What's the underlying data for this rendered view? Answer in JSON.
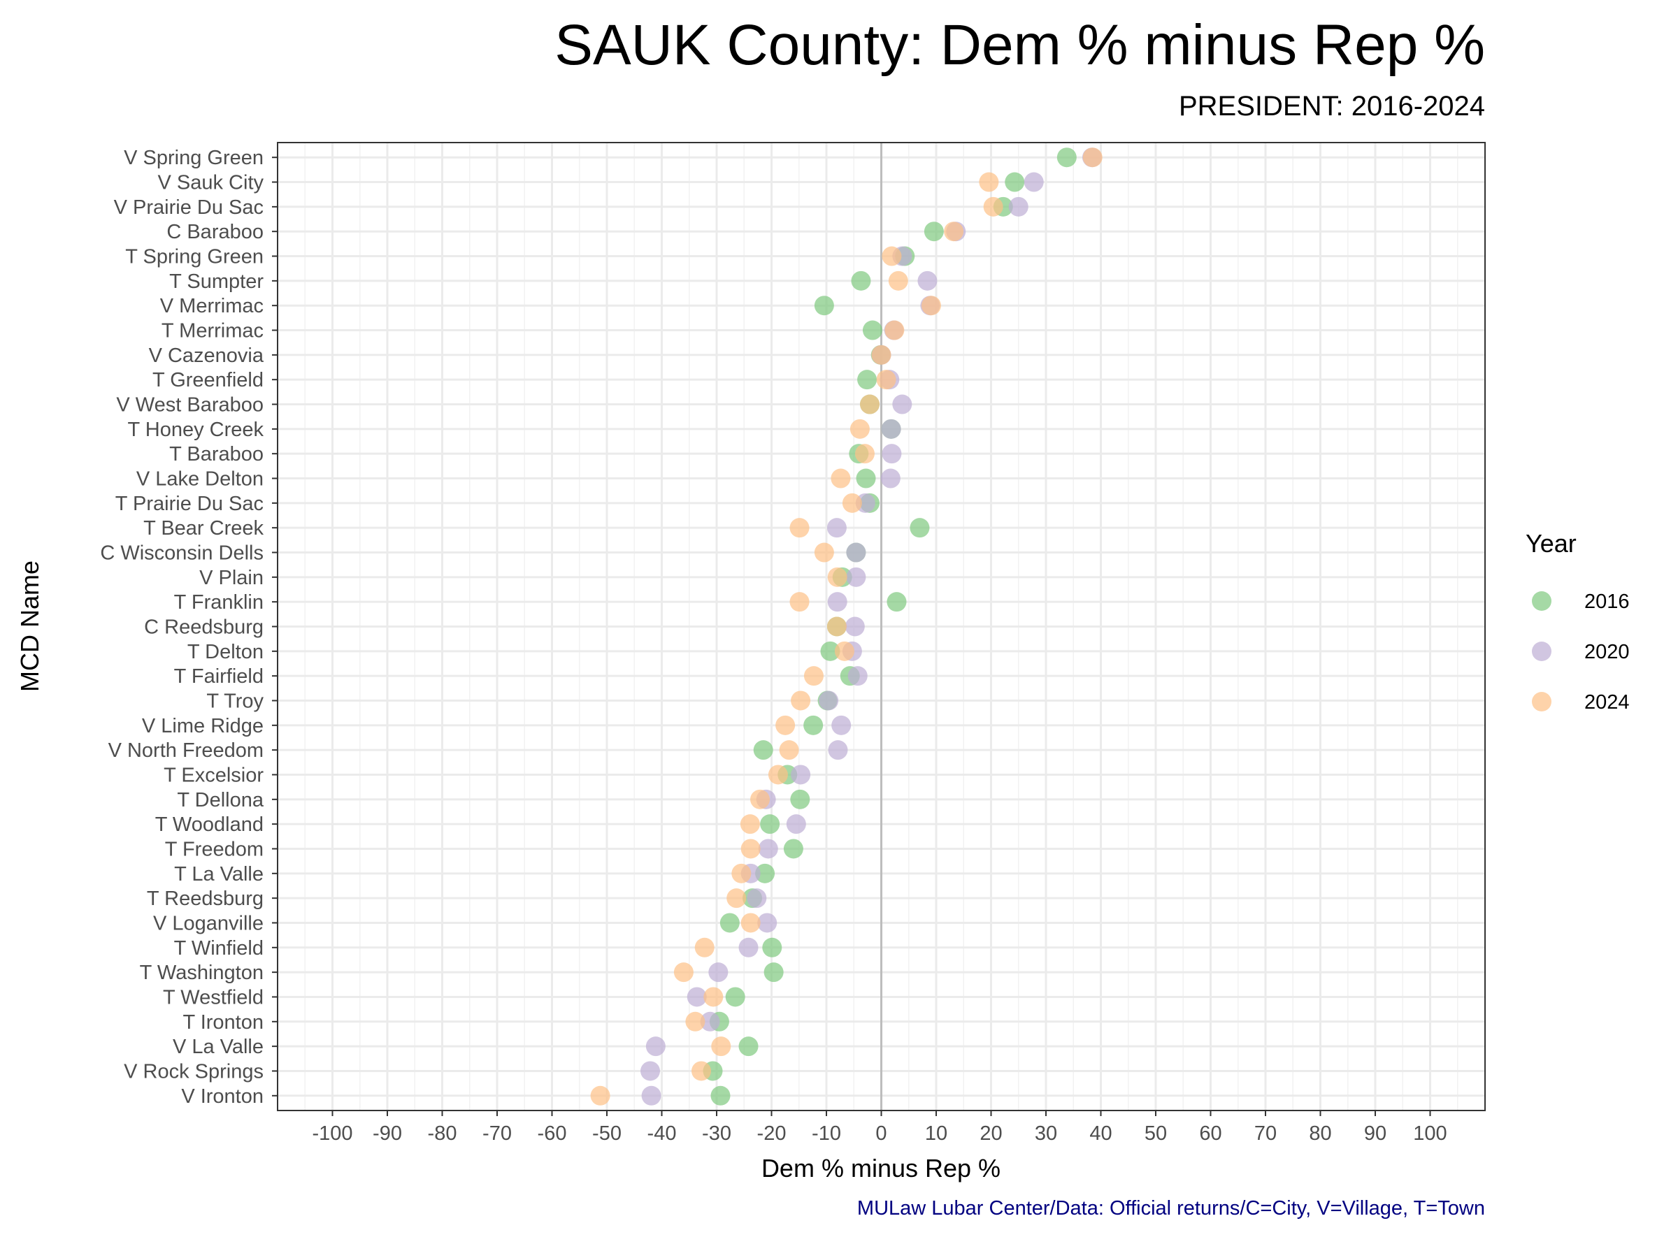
{
  "chart_data": {
    "type": "scatter",
    "title": "SAUK County: Dem % minus Rep %",
    "subtitle": "PRESIDENT: 2016-2024",
    "xlabel": "Dem % minus Rep %",
    "ylabel": "MCD Name",
    "caption": "MULaw Lubar Center/Data: Official returns/C=City, V=Village, T=Town",
    "xlim": [
      -110,
      110
    ],
    "x_ticks": [
      -100,
      -90,
      -80,
      -70,
      -60,
      -50,
      -40,
      -30,
      -20,
      -10,
      0,
      10,
      20,
      30,
      40,
      50,
      60,
      70,
      80,
      90,
      100
    ],
    "x_tick_labels": [
      "-100",
      "-90",
      "-80",
      "-70",
      "-60",
      "-50",
      "-40",
      "-30",
      "-20",
      "-10",
      "0",
      "10",
      "20",
      "30",
      "40",
      "50",
      "60",
      "70",
      "80",
      "90",
      "100"
    ],
    "grid": true,
    "reference_line_x": 0,
    "legend_position": "right",
    "legend_title": "Year",
    "categories": [
      "V Spring Green",
      "V Sauk City",
      "V Prairie Du Sac",
      "C Baraboo",
      "T Spring Green",
      "T Sumpter",
      "V Merrimac",
      "T Merrimac",
      "V Cazenovia",
      "T Greenfield",
      "V West Baraboo",
      "T Honey Creek",
      "T Baraboo",
      "V Lake Delton",
      "T Prairie Du Sac",
      "T Bear Creek",
      "C Wisconsin Dells",
      "V Plain",
      "T Franklin",
      "C Reedsburg",
      "T Delton",
      "T Fairfield",
      "T Troy",
      "V Lime Ridge",
      "V North Freedom",
      "T Excelsior",
      "T Dellona",
      "T Woodland",
      "T Freedom",
      "T La Valle",
      "T Reedsburg",
      "V Loganville",
      "T Winfield",
      "T Washington",
      "T Westfield",
      "T Ironton",
      "V La Valle",
      "V Rock Springs",
      "V Ironton"
    ],
    "series": [
      {
        "name": "2016",
        "color": "#7fc97f",
        "values": [
          33.8,
          24.3,
          22.2,
          9.6,
          4.3,
          -3.7,
          -10.4,
          -1.6,
          -0.1,
          -2.6,
          -2.1,
          1.8,
          -4.1,
          -2.8,
          -2.1,
          7.0,
          -4.6,
          -7.1,
          2.8,
          -8.1,
          -9.3,
          -5.7,
          -9.8,
          -12.4,
          -21.5,
          -17.1,
          -14.8,
          -20.3,
          -16.0,
          -21.2,
          -23.5,
          -27.6,
          -19.9,
          -19.6,
          -26.6,
          -29.5,
          -24.2,
          -30.7,
          -29.3
        ]
      },
      {
        "name": "2020",
        "color": "#beaed4",
        "values": [
          38.4,
          27.8,
          25.0,
          13.6,
          3.8,
          8.4,
          8.9,
          2.3,
          0.0,
          1.5,
          3.8,
          1.8,
          1.9,
          1.7,
          -2.9,
          -8.1,
          -4.6,
          -4.6,
          -8.0,
          -4.8,
          -5.3,
          -4.3,
          -9.6,
          -7.3,
          -7.9,
          -14.7,
          -21.0,
          -15.5,
          -20.6,
          -23.8,
          -22.7,
          -20.8,
          -24.2,
          -29.7,
          -33.6,
          -31.2,
          -41.1,
          -42.1,
          -41.9
        ]
      },
      {
        "name": "2024",
        "color": "#fdc086",
        "values": [
          38.5,
          19.6,
          20.4,
          13.2,
          1.9,
          3.1,
          9.1,
          2.4,
          0.0,
          0.9,
          -2.1,
          -3.9,
          -3.0,
          -7.4,
          -5.3,
          -14.9,
          -10.4,
          -8.0,
          -14.9,
          -8.1,
          -6.7,
          -12.3,
          -14.7,
          -17.5,
          -16.8,
          -18.8,
          -22.1,
          -23.9,
          -23.8,
          -25.5,
          -26.4,
          -23.8,
          -32.2,
          -36.0,
          -30.6,
          -33.9,
          -29.2,
          -32.8,
          -51.2
        ]
      }
    ]
  }
}
